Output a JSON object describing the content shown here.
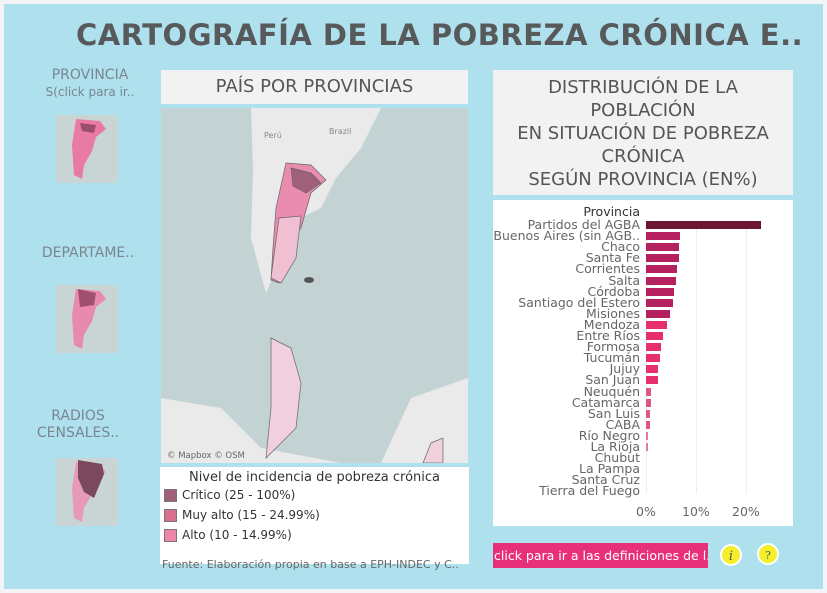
{
  "title": "CARTOGRAFÍA DE LA POBREZA CRÓNICA E..",
  "nav": [
    {
      "label_line1": "PROVINCIA",
      "label_line2": "S(click para ir.."
    },
    {
      "label_line1": "DEPARTAME..",
      "label_line2": ""
    },
    {
      "label_line1": "RADIOS",
      "label_line2": "CENSALES.."
    }
  ],
  "map_panel": {
    "title": "PAÍS POR PROVINCIAS",
    "labels": {
      "peru": "Perú",
      "brazil": "Brazil"
    },
    "attribution": "© Mapbox © OSM"
  },
  "legend": {
    "title": "Nivel de incidencia de pobreza crónica",
    "items": [
      {
        "label": "Crítico (25 - 100%)",
        "color": "#a0607a"
      },
      {
        "label": "Muy alto (15 - 24.99%)",
        "color": "#d9708f"
      },
      {
        "label": "Alto (10 - 14.99%)",
        "color": "#ee86aa"
      }
    ]
  },
  "source": "Fuente: Elaboración propia en base a EPH-INDEC y C..",
  "chart_panel": {
    "title_lines": [
      "DISTRIBUCIÓN DE LA",
      "POBLACIÓN",
      "EN SITUACIÓN DE POBREZA",
      "CRÓNICA",
      "SEGÚN PROVINCIA (EN%)"
    ]
  },
  "chart_data": {
    "type": "bar",
    "orientation": "horizontal",
    "category_header": "Provincia",
    "categories": [
      "Partidos del AGBA",
      "Buenos Aires (sin AGB..",
      "Chaco",
      "Santa Fe",
      "Corrientes",
      "Salta",
      "Córdoba",
      "Santiago del Estero",
      "Misiones",
      "Mendoza",
      "Entre Ríos",
      "Formosa",
      "Tucumán",
      "Jujuy",
      "San Juan",
      "Neuquén",
      "Catamarca",
      "San Luis",
      "CABA",
      "Río Negro",
      "La Rioja",
      "Chubut",
      "La Pampa",
      "Santa Cruz",
      "Tierra del Fuego"
    ],
    "values": [
      23,
      6.8,
      6.6,
      6.6,
      6.2,
      6.0,
      5.6,
      5.4,
      4.8,
      4.2,
      3.4,
      3.0,
      2.8,
      2.4,
      2.4,
      1.0,
      1.0,
      0.8,
      0.8,
      0.4,
      0.4,
      0,
      0,
      0,
      0
    ],
    "colors": [
      "#6e1535",
      "#b5205e",
      "#b5205e",
      "#b5205e",
      "#b5205e",
      "#b5205e",
      "#b5205e",
      "#b5205e",
      "#b5205e",
      "#e52f6e",
      "#e52f6e",
      "#e52f6e",
      "#e52f6e",
      "#e52f6e",
      "#e52f6e",
      "#e0558a",
      "#e0558a",
      "#e0558a",
      "#e0558a",
      "#ea77a0",
      "#ea77a0",
      "#ea77a0",
      "#ea77a0",
      "#ea77a0",
      "#ea77a0"
    ],
    "xticks": [
      "0%",
      "10%",
      "20%"
    ],
    "xlim": [
      0,
      23.5
    ],
    "grid": true
  },
  "buttons": {
    "definitions": "click para ir a las definiciones de l..",
    "info": "i",
    "help": "?"
  }
}
